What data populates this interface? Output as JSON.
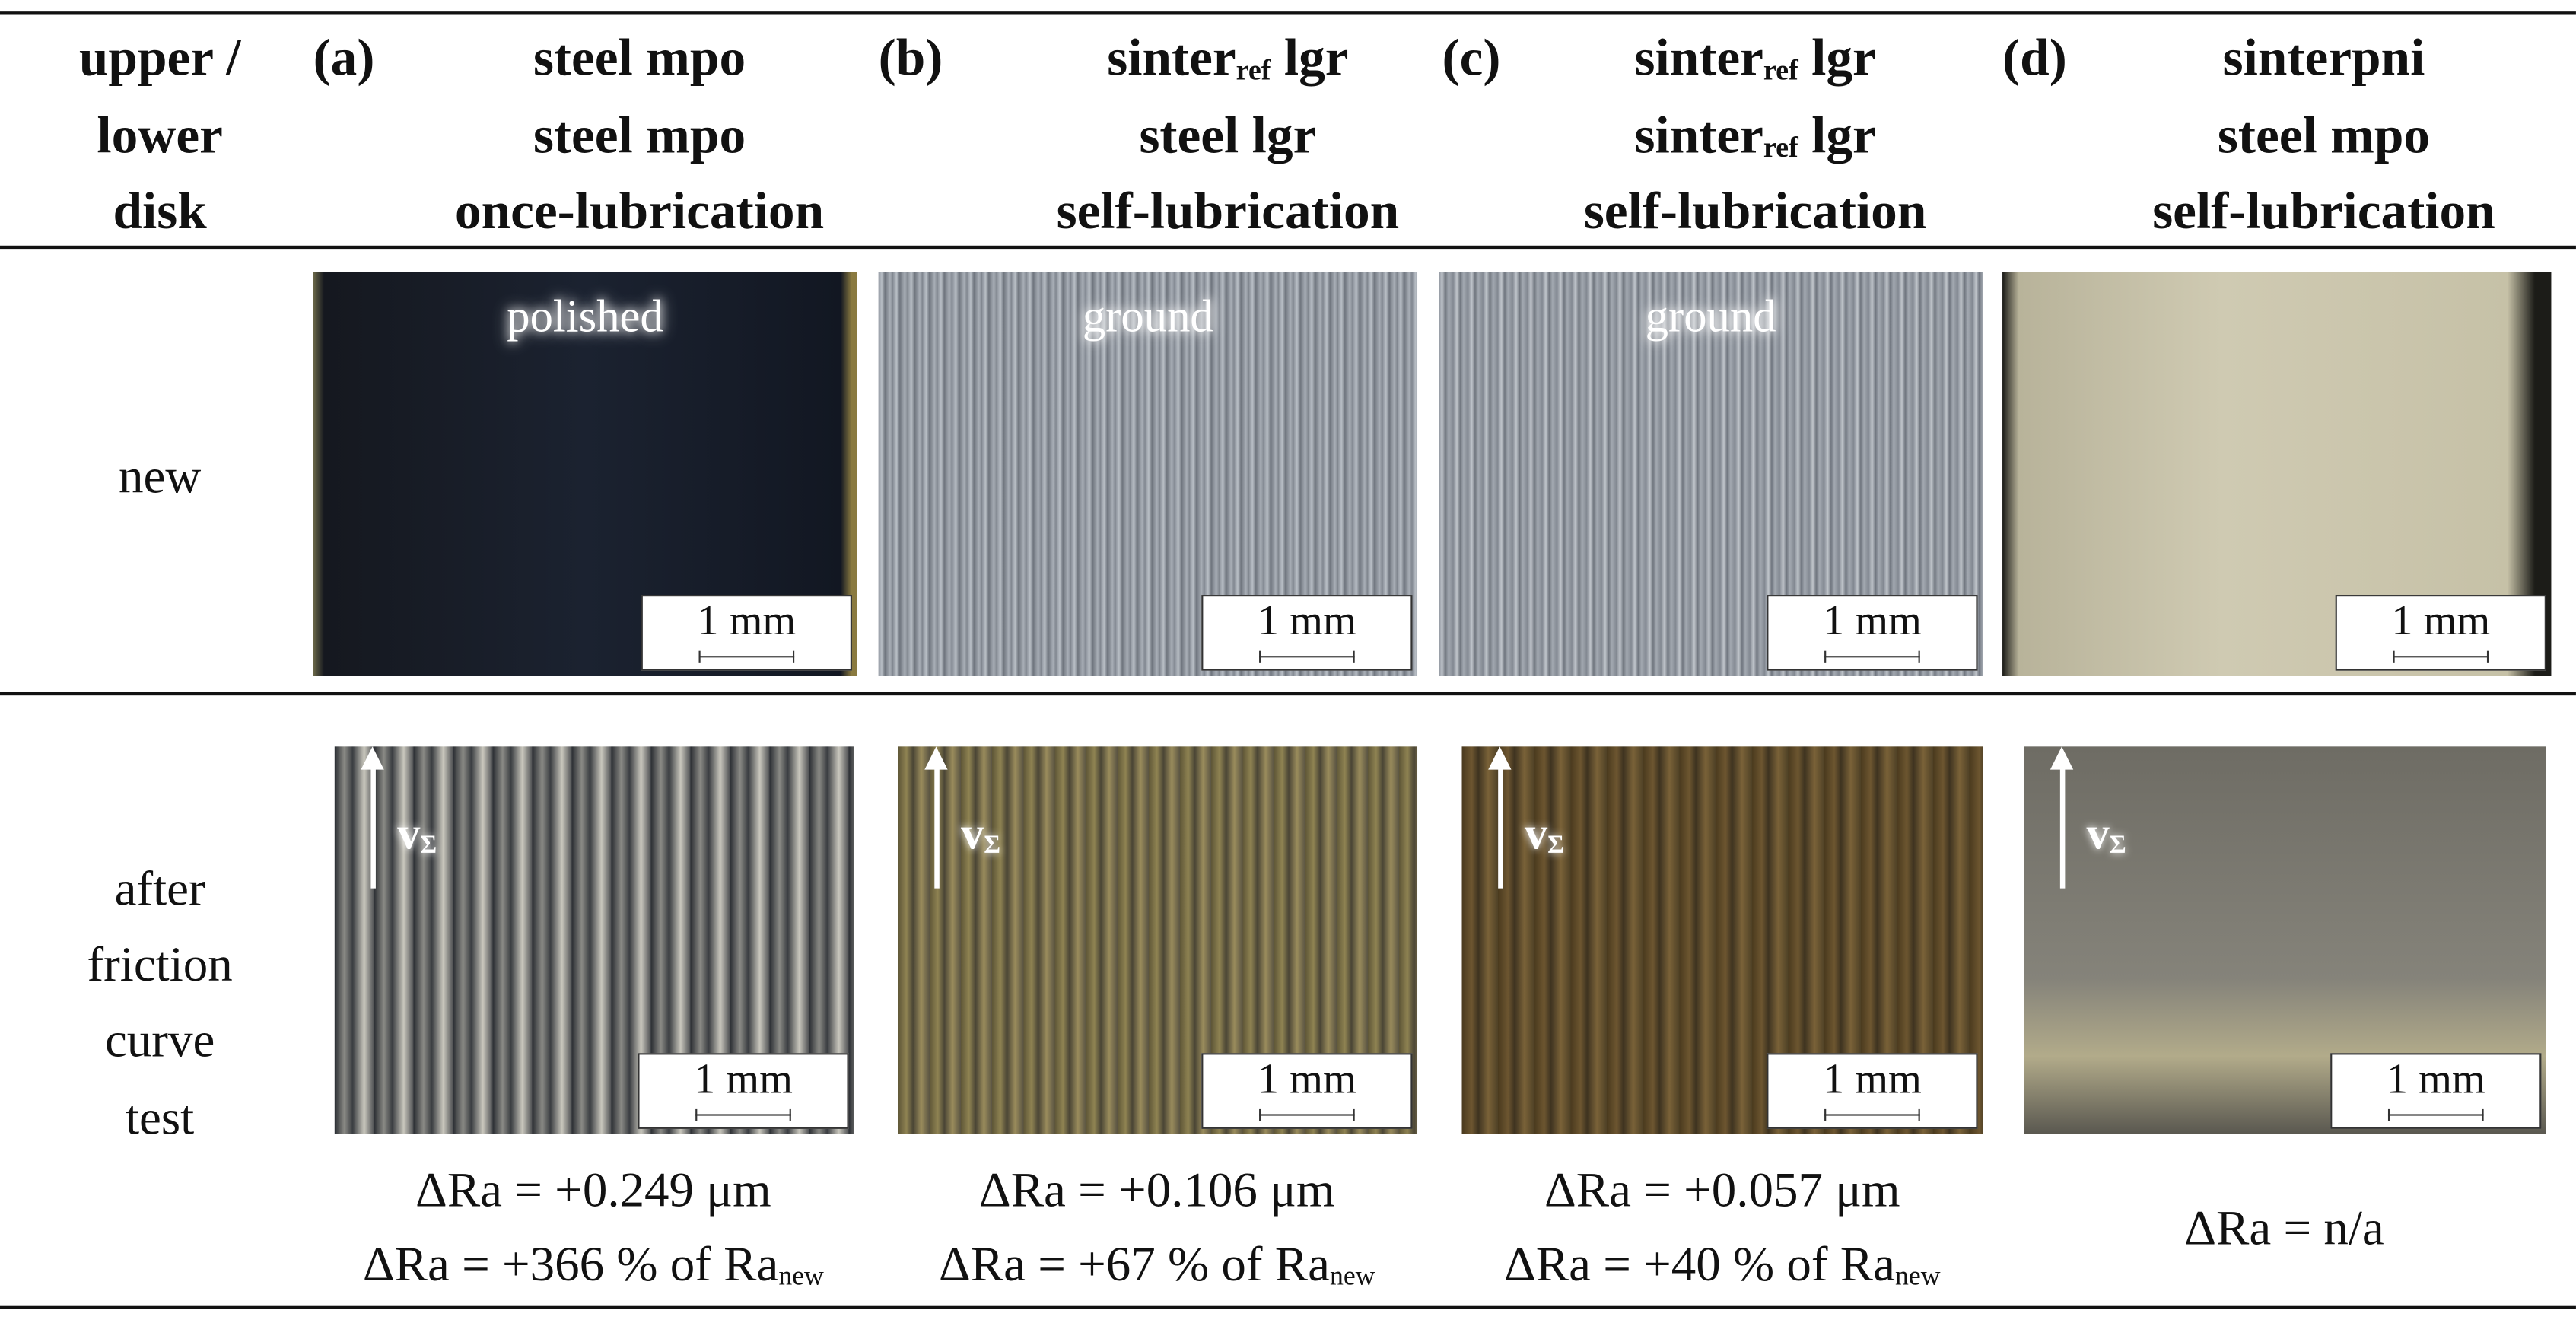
{
  "header": {
    "row_label": [
      "upper /",
      "lower",
      "disk"
    ],
    "columns": [
      {
        "letter": "(a)",
        "lines": [
          "steel mpo",
          "steel mpo",
          "once-lubrication"
        ]
      },
      {
        "letter": "(b)",
        "lines": [
          {
            "text": "sinter",
            "sub": "ref",
            "tail": " lgr"
          },
          "steel lgr",
          "self-lubrication"
        ]
      },
      {
        "letter": "(c)",
        "lines": [
          {
            "text": "sinter",
            "sub": "ref",
            "tail": " lgr"
          },
          {
            "text": "sinter",
            "sub": "ref",
            "tail": " lgr"
          },
          "self-lubrication"
        ]
      },
      {
        "letter": "(d)",
        "lines": [
          "sinterpni",
          "steel mpo",
          "self-lubrication"
        ]
      }
    ]
  },
  "rows": [
    {
      "label": [
        "new"
      ],
      "images": [
        {
          "caption": "polished",
          "scale_bar": "1 mm"
        },
        {
          "caption": "ground",
          "scale_bar": "1 mm"
        },
        {
          "caption": "ground",
          "scale_bar": "1 mm"
        },
        {
          "scale_bar": "1 mm"
        }
      ]
    },
    {
      "label": [
        "after",
        "friction",
        "curve",
        "test"
      ],
      "images": [
        {
          "velocity": {
            "text": "v",
            "sub": "Σ"
          },
          "scale_bar": "1 mm"
        },
        {
          "velocity": {
            "text": "v",
            "sub": "Σ"
          },
          "scale_bar": "1 mm"
        },
        {
          "velocity": {
            "text": "v",
            "sub": "Σ"
          },
          "scale_bar": "1 mm"
        },
        {
          "velocity": {
            "text": "v",
            "sub": "Σ"
          },
          "scale_bar": "1 mm"
        }
      ]
    }
  ],
  "results": [
    {
      "lines": [
        "ΔRa = +0.249 μm",
        {
          "text": "ΔRa = +366 % of Ra",
          "sub": "new"
        }
      ]
    },
    {
      "lines": [
        "ΔRa = +0.106 μm",
        {
          "text": "ΔRa = +67 % of Ra",
          "sub": "new"
        }
      ]
    },
    {
      "lines": [
        "ΔRa = +0.057 μm",
        {
          "text": "ΔRa = +40 % of Ra",
          "sub": "new"
        }
      ]
    },
    {
      "lines": [
        "ΔRa = n/a"
      ]
    }
  ]
}
